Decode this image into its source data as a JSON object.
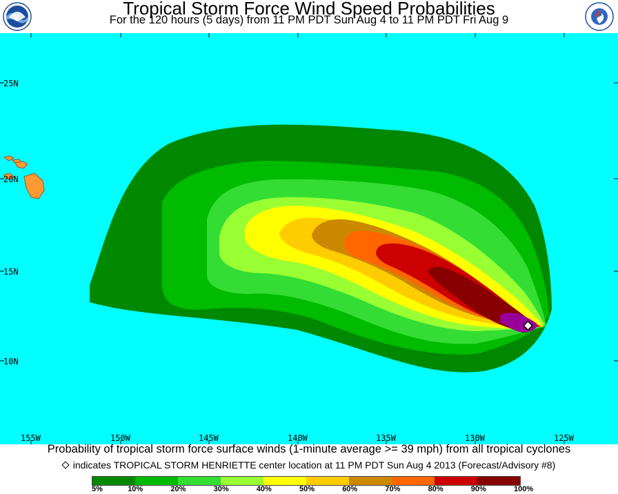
{
  "header": {
    "title": "Tropical Storm Force Wind Speed Probabilities",
    "subtitle": "For the 120 hours (5 days) from 11 PM PDT Sun Aug 4 to 11 PM PDT Fri Aug 9",
    "left_logo": "NOAA",
    "right_logo": "National Weather Service"
  },
  "map": {
    "ocean_color": "#00ffff",
    "land_color": "#ff9933",
    "lat_labels": [
      "25N",
      "20N",
      "15N",
      "10N"
    ],
    "lon_labels": [
      "155W",
      "150W",
      "145W",
      "140W",
      "135W",
      "130W",
      "125W"
    ],
    "storm_center_icon": "diamond-icon"
  },
  "footer": {
    "caption": "Probability of tropical storm force surface winds (1-minute average >= 39 mph) from all tropical cyclones",
    "center_note": "indicates TROPICAL STORM HENRIETTE center location at 11 PM PDT Sun Aug 4 2013 (Forecast/Advisory #8)"
  },
  "legend": {
    "colors": [
      "#008800",
      "#00bb00",
      "#33dd33",
      "#99ff33",
      "#ffff00",
      "#ffcc00",
      "#cc8800",
      "#ff6600",
      "#cc0000",
      "#880000",
      "#990099"
    ],
    "labels": [
      "5%",
      "10%",
      "20%",
      "30%",
      "40%",
      "50%",
      "60%",
      "70%",
      "80%",
      "90%",
      "100%"
    ]
  }
}
